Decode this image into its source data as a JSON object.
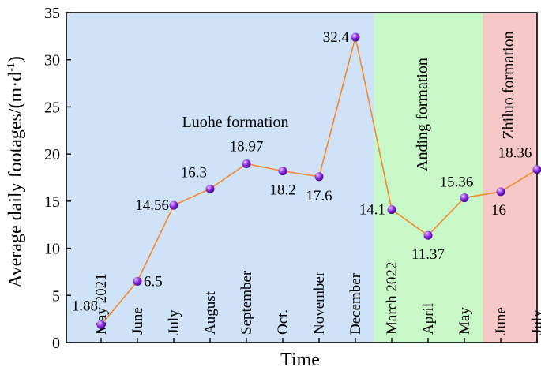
{
  "chart_data": {
    "type": "line",
    "xlabel": "Time",
    "ylabel": "Average daily footages/(m·d",
    "ylabel_sup": "-1",
    "ylabel_close": ")",
    "ylim": [
      0,
      35
    ],
    "yticks": [
      0,
      5,
      10,
      15,
      20,
      25,
      30,
      35
    ],
    "grid": false,
    "categories": [
      "May 2021",
      "June",
      "July",
      "August",
      "September",
      "Oct.",
      "November",
      "December",
      "March 2022",
      "April",
      "May",
      "June",
      "July"
    ],
    "series": [
      {
        "values": [
          1.88,
          6.5,
          14.56,
          16.3,
          18.97,
          18.2,
          17.6,
          32.4,
          14.1,
          11.37,
          15.36,
          16,
          18.36
        ],
        "labels": [
          "1.88",
          "6.5",
          "14.56",
          "16.3",
          "18.97",
          "18.2",
          "17.6",
          "32.4",
          "14.1",
          "11.37",
          "15.36",
          "16",
          "18.36"
        ],
        "line_color": "#f08a2c",
        "marker_color": "#8a2be2"
      }
    ],
    "regions": [
      {
        "label": "Luohe formation",
        "from_index": 0,
        "to_index": 7,
        "color": "#cfe2f7"
      },
      {
        "label": "Anding formation",
        "from_index": 8,
        "to_index": 10,
        "color": "#c8f7c8"
      },
      {
        "label": "Zhiluo formation",
        "from_index": 11,
        "to_index": 12,
        "color": "#f7c8c8"
      }
    ]
  }
}
